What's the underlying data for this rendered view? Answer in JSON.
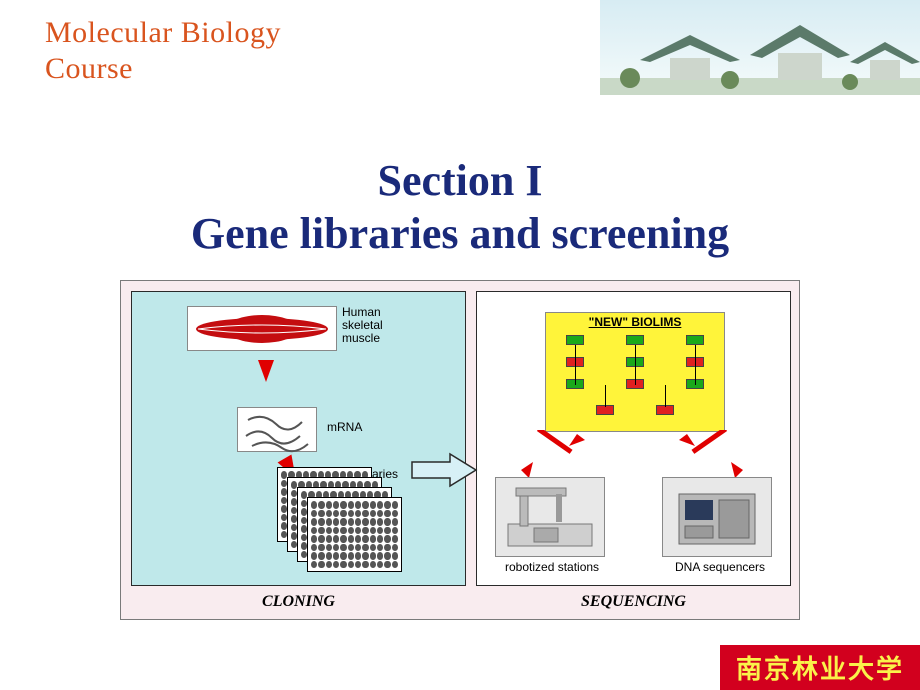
{
  "header": {
    "line1": "Molecular Biology",
    "line2": "Course",
    "color": "#d9541e"
  },
  "section_title": {
    "line1": "Section I",
    "line2": "Gene libraries and screening",
    "color": "#1a2a7a"
  },
  "diagram": {
    "outer_bg": "#f9ecef",
    "left_panel": {
      "bg": "#bfe8ea",
      "label": "CLONING",
      "muscle_label_l1": "Human",
      "muscle_label_l2": "skeletal",
      "muscle_label_l3": "muscle",
      "mrna_label": "mRNA",
      "cdna_label": "cDNA libraries",
      "muscle_color": "#c40d10"
    },
    "right_panel": {
      "bg": "#ffffff",
      "label": "SEQUENCING",
      "biolims_title": "\"NEW\" BIOLIMS",
      "biolims_bg": "#fff43a",
      "robot_label": "robotized stations",
      "seq_label": "DNA sequencers",
      "arrow_color": "#e00000"
    },
    "transition_arrow": {
      "fill": "#d7f0f6",
      "stroke": "#2a2a2a"
    }
  },
  "footer": {
    "text": "南京林业大学",
    "bg": "#d2001e",
    "color": "#faf24a"
  },
  "header_image": {
    "sky_top": "#d7ecf3",
    "sky_bottom": "#f5fbfb",
    "roof": "#5b7a6a",
    "ground": "#c9d9c7"
  }
}
